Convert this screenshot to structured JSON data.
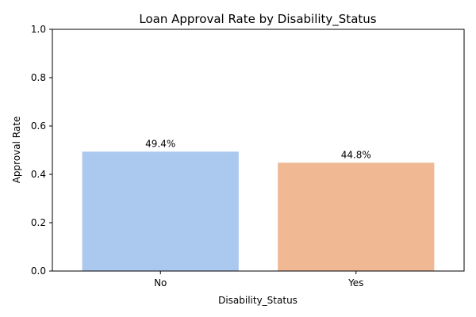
{
  "chart_data": {
    "type": "bar",
    "title": "Loan Approval Rate by Disability_Status",
    "xlabel": "Disability_Status",
    "ylabel": "Approval Rate",
    "categories": [
      "No",
      "Yes"
    ],
    "values": [
      0.494,
      0.448
    ],
    "data_labels": [
      "49.4%",
      "44.8%"
    ],
    "colors": [
      "#abc9ef",
      "#f0b994"
    ],
    "ylim": [
      0,
      1
    ],
    "yticks": [
      0.0,
      0.2,
      0.4,
      0.6,
      0.8,
      1.0
    ],
    "ytick_labels": [
      "0.0",
      "0.2",
      "0.4",
      "0.6",
      "0.8",
      "1.0"
    ],
    "grid": false,
    "legend": "none"
  }
}
